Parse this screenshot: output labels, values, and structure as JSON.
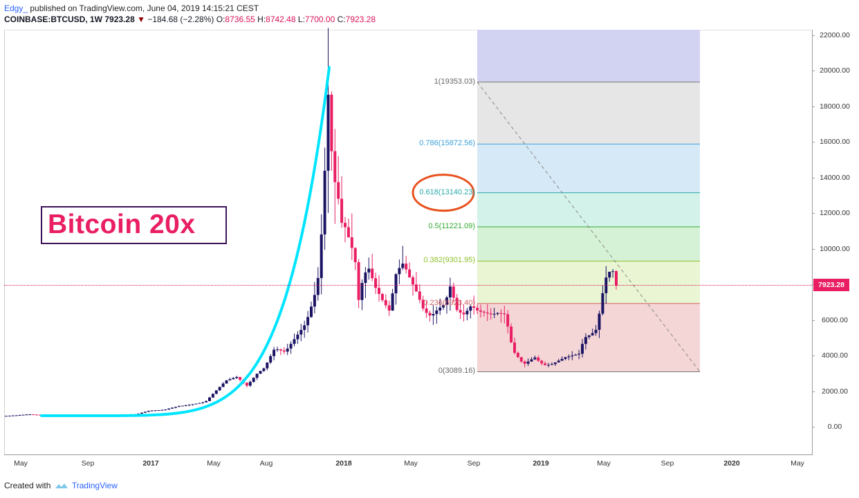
{
  "header": {
    "author": "Edgy_",
    "published": "published on TradingView.com, June 04, 2019 14:15:21 CEST",
    "symbol": "COINBASE:BTCUSD, 1W",
    "last": "7923.28",
    "change": "−184.68 (−2.28%)",
    "o_label": "O:",
    "open": "8736.55",
    "h_label": "H:",
    "high": "8742.48",
    "l_label": "L:",
    "low": "7700.00",
    "c_label": "C:",
    "close": "7923.28"
  },
  "title_box": "Bitcoin 20x",
  "current_price": "7923.28",
  "y_axis": [
    "22000.00",
    "20000.00",
    "18000.00",
    "16000.00",
    "14000.00",
    "12000.00",
    "10000.00",
    "8000.00",
    "6000.00",
    "4000.00",
    "2000.00",
    "0.00"
  ],
  "x_axis": [
    {
      "label": "May",
      "bold": false
    },
    {
      "label": "Sep",
      "bold": false
    },
    {
      "label": "2017",
      "bold": true
    },
    {
      "label": "May",
      "bold": false
    },
    {
      "label": "Aug",
      "bold": false
    },
    {
      "label": "2018",
      "bold": true
    },
    {
      "label": "May",
      "bold": false
    },
    {
      "label": "Sep",
      "bold": false
    },
    {
      "label": "2019",
      "bold": true
    },
    {
      "label": "May",
      "bold": false
    },
    {
      "label": "Sep",
      "bold": false
    },
    {
      "label": "2020",
      "bold": true
    },
    {
      "label": "May",
      "bold": false
    }
  ],
  "fib_levels": [
    {
      "label": "1(19353.03)",
      "value": 19353.03,
      "color": "#777777",
      "fill": "#e6e6e6"
    },
    {
      "label": "0.786(15872.56)",
      "value": 15872.56,
      "color": "#3aa0d8",
      "fill": "#d6e9f6"
    },
    {
      "label": "0.618(13140.23)",
      "value": 13140.23,
      "color": "#2aa8a8",
      "fill": "#d3f2ea"
    },
    {
      "label": "0.5(11221.09)",
      "value": 11221.09,
      "color": "#33aa33",
      "fill": "#d6f2d6"
    },
    {
      "label": "0.382(9301.95)",
      "value": 9301.95,
      "color": "#8fbf2a",
      "fill": "#e9f5d3"
    },
    {
      "label": "0.236(6923.40)",
      "value": 6923.4,
      "color": "#d16060",
      "fill": "#f5d6d6"
    },
    {
      "label": "0(3089.16)",
      "value": 3089.16,
      "color": "#777777",
      "fill": ""
    }
  ],
  "colors": {
    "bull": "#1b1464",
    "bear": "#e91e63",
    "curve": "#00e5ff",
    "highlight_circle": "#e8501c",
    "top_zone": "#d2d2f2"
  },
  "footer": {
    "created": "Created with",
    "brand": "TradingView"
  },
  "chart_data": {
    "type": "candlestick",
    "title": "",
    "symbol": "COINBASE:BTCUSD",
    "interval": "1W",
    "ylim": [
      -500,
      22500
    ],
    "x_range": [
      "2016-04",
      "2020-05"
    ],
    "candles_approx": [
      [
        "2016-06",
        600,
        750,
        560,
        700
      ],
      [
        "2016-09",
        600,
        620,
        580,
        610
      ],
      [
        "2017-01",
        950,
        1150,
        800,
        900
      ],
      [
        "2017-05",
        1300,
        2000,
        1250,
        1950
      ],
      [
        "2017-07",
        2500,
        2900,
        1900,
        2800
      ],
      [
        "2017-08",
        2800,
        4500,
        2700,
        4300
      ],
      [
        "2017-10",
        4300,
        6000,
        4200,
        5900
      ],
      [
        "2017-11",
        6000,
        9500,
        5500,
        9300
      ],
      [
        "2017-12",
        9300,
        19800,
        9000,
        19300
      ],
      [
        "2018-01",
        14000,
        17200,
        9000,
        11000
      ],
      [
        "2018-02",
        10000,
        11700,
        5900,
        8200
      ],
      [
        "2018-04",
        7000,
        9800,
        6500,
        9300
      ],
      [
        "2018-06",
        7500,
        7700,
        5800,
        6400
      ],
      [
        "2018-07",
        6400,
        8500,
        6100,
        8200
      ],
      [
        "2018-09",
        6500,
        7400,
        6100,
        6600
      ],
      [
        "2018-11",
        6400,
        6500,
        3500,
        4000
      ],
      [
        "2018-12",
        3500,
        4200,
        3100,
        3700
      ],
      [
        "2019-02",
        3400,
        4200,
        3400,
        4100
      ],
      [
        "2019-04",
        4100,
        5600,
        4000,
        5300
      ],
      [
        "2019-05",
        5700,
        9100,
        5600,
        8700
      ],
      [
        "2019-06",
        8736.55,
        8742.48,
        7700.0,
        7923.28
      ]
    ],
    "fibonacci": {
      "high": 19353.03,
      "low": 3089.16
    },
    "grid": false
  }
}
